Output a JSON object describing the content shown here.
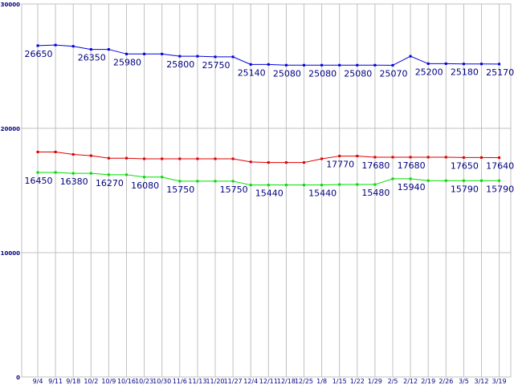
{
  "chart_data": {
    "type": "line",
    "title": "",
    "xlabel": "",
    "ylabel": "",
    "ylim": [
      0,
      30000
    ],
    "yticks": [
      0,
      10000,
      20000,
      30000
    ],
    "grid": true,
    "categories": [
      "9/4",
      "9/11",
      "9/18",
      "10/2",
      "10/9",
      "10/16",
      "10/23",
      "10/30",
      "11/6",
      "11/13",
      "11/20",
      "11/27",
      "12/4",
      "12/11",
      "12/18",
      "12/25",
      "1/8",
      "1/15",
      "1/22",
      "1/29",
      "2/5",
      "2/12",
      "2/19",
      "2/26",
      "3/5",
      "3/12",
      "3/19"
    ],
    "series": [
      {
        "color": "#0000dd",
        "values": [
          26650,
          26700,
          26600,
          26350,
          26350,
          25980,
          25980,
          25980,
          25800,
          25800,
          25750,
          25750,
          25140,
          25140,
          25080,
          25080,
          25080,
          25080,
          25080,
          25080,
          25070,
          25800,
          25200,
          25200,
          25180,
          25180,
          25170
        ],
        "labels": [
          {
            "index": 0,
            "text": "26650"
          },
          {
            "index": 3,
            "text": "26350"
          },
          {
            "index": 5,
            "text": "25980"
          },
          {
            "index": 8,
            "text": "25800"
          },
          {
            "index": 10,
            "text": "25750"
          },
          {
            "index": 12,
            "text": "25140"
          },
          {
            "index": 14,
            "text": "25080"
          },
          {
            "index": 16,
            "text": "25080"
          },
          {
            "index": 18,
            "text": "25080"
          },
          {
            "index": 20,
            "text": "25070"
          },
          {
            "index": 22,
            "text": "25200"
          },
          {
            "index": 24,
            "text": "25180"
          },
          {
            "index": 26,
            "text": "25170"
          }
        ]
      },
      {
        "color": "#dd0000",
        "values": [
          18100,
          18100,
          17900,
          17800,
          17600,
          17600,
          17550,
          17550,
          17550,
          17550,
          17550,
          17550,
          17300,
          17250,
          17250,
          17250,
          17550,
          17770,
          17770,
          17680,
          17680,
          17680,
          17680,
          17680,
          17650,
          17650,
          17640
        ],
        "labels": [
          {
            "index": 17,
            "text": "17770"
          },
          {
            "index": 19,
            "text": "17680"
          },
          {
            "index": 21,
            "text": "17680"
          },
          {
            "index": 24,
            "text": "17650"
          },
          {
            "index": 26,
            "text": "17640"
          }
        ]
      },
      {
        "color": "#00dd00",
        "values": [
          16450,
          16450,
          16380,
          16380,
          16270,
          16270,
          16080,
          16080,
          15750,
          15750,
          15750,
          15750,
          15440,
          15440,
          15440,
          15440,
          15440,
          15480,
          15480,
          15480,
          15940,
          15940,
          15790,
          15790,
          15790,
          15790,
          15790
        ],
        "labels": [
          {
            "index": 0,
            "text": "16450"
          },
          {
            "index": 2,
            "text": "16380"
          },
          {
            "index": 4,
            "text": "16270"
          },
          {
            "index": 6,
            "text": "16080"
          },
          {
            "index": 8,
            "text": "15750"
          },
          {
            "index": 11,
            "text": "15750"
          },
          {
            "index": 13,
            "text": "15440"
          },
          {
            "index": 16,
            "text": "15440"
          },
          {
            "index": 19,
            "text": "15480"
          },
          {
            "index": 21,
            "text": "15940"
          },
          {
            "index": 24,
            "text": "15790"
          },
          {
            "index": 26,
            "text": "15790"
          }
        ]
      }
    ]
  }
}
